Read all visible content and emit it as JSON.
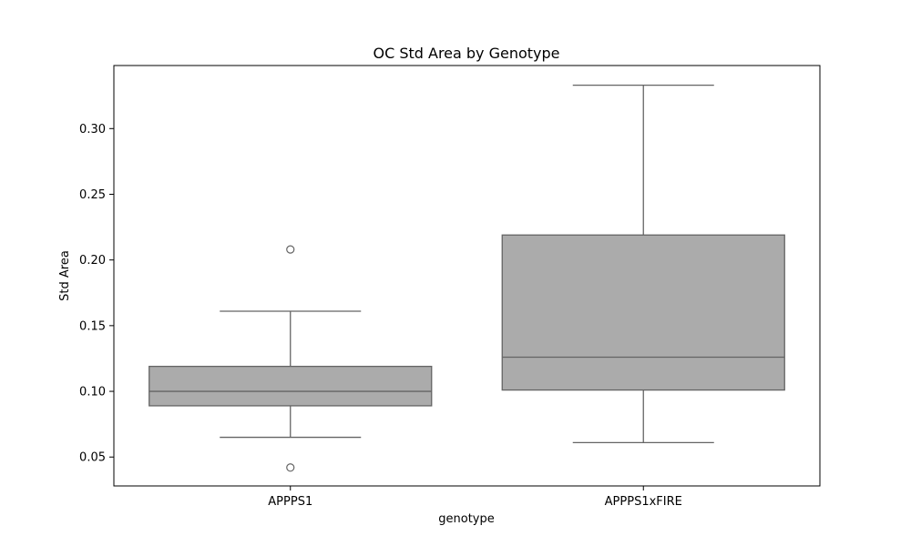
{
  "chart_data": {
    "type": "box",
    "title": "OC Std Area by Genotype",
    "xlabel": "genotype",
    "ylabel": "Std Area",
    "ylim": [
      0.028,
      0.348
    ],
    "yticks": [
      0.05,
      0.1,
      0.15,
      0.2,
      0.25,
      0.3
    ],
    "ytick_labels": [
      "0.05",
      "0.10",
      "0.15",
      "0.20",
      "0.25",
      "0.30"
    ],
    "grid": false,
    "box_color": "#ababab",
    "line_color": "#646464",
    "categories": [
      "APPPS1",
      "APPPS1xFIRE"
    ],
    "boxes": [
      {
        "category": "APPPS1",
        "whisker_low": 0.065,
        "q1": 0.089,
        "median": 0.1,
        "q3": 0.119,
        "whisker_high": 0.161,
        "outliers": [
          0.208,
          0.042
        ]
      },
      {
        "category": "APPPS1xFIRE",
        "whisker_low": 0.061,
        "q1": 0.101,
        "median": 0.126,
        "q3": 0.219,
        "whisker_high": 0.333,
        "outliers": []
      }
    ]
  }
}
